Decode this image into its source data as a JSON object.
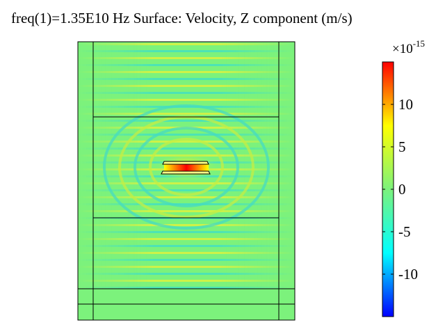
{
  "plot": {
    "title": "freq(1)=1.35E10 Hz   Surface: Velocity, Z component (m/s)"
  },
  "colorbar": {
    "multiplier_base": "×10",
    "multiplier_exponent": "-15",
    "colormap": [
      "#0000ff",
      "#00ffff",
      "#7cf27c",
      "#ffff00",
      "#ff0000"
    ],
    "range": [
      -15,
      15
    ],
    "ticks": [
      {
        "value": 10,
        "label": "10"
      },
      {
        "value": 5,
        "label": "5"
      },
      {
        "value": 0,
        "label": "0"
      },
      {
        "value": -5,
        "label": "-5"
      },
      {
        "value": -10,
        "label": "-10"
      }
    ]
  },
  "chart_data": {
    "type": "heatmap",
    "title": "freq(1)=1.35E10 Hz   Surface: Velocity, Z component (m/s)",
    "quantity": "Velocity, Z component (m/s)",
    "frequency_hz": 13500000000.0,
    "color_range": [
      -15,
      15
    ],
    "color_scale_multiplier": "1e-15",
    "colorbar_ticks": [
      -10,
      -5,
      0,
      5,
      10
    ],
    "background_value": 0,
    "colors": {
      "low": "#0000ff",
      "mid": "#7cf27c",
      "high": "#ff0000"
    }
  }
}
